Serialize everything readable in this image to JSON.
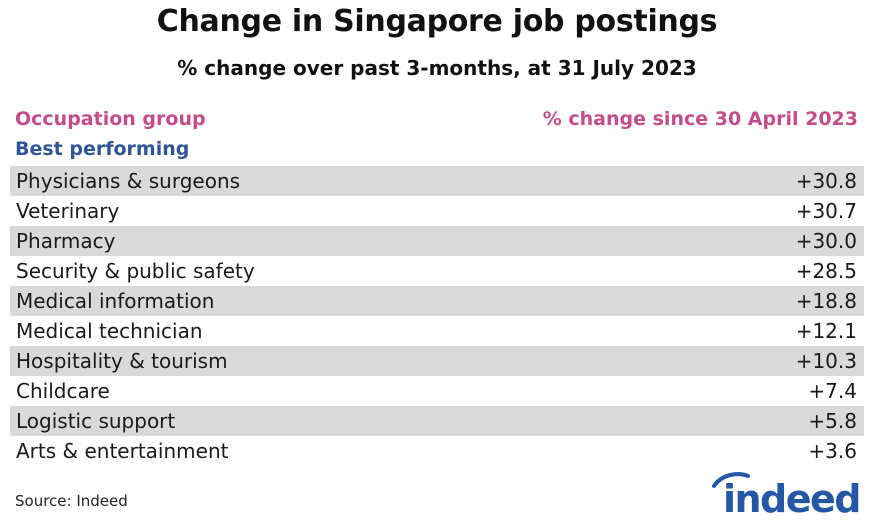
{
  "chart_data": {
    "type": "table",
    "title": "Change in Singapore job postings",
    "subtitle": "% change over past 3-months, at 31 July 2023",
    "columns": [
      "Occupation group",
      "% change since 30 April 2023"
    ],
    "section": "Best performing",
    "categories": [
      "Physicians & surgeons",
      "Veterinary",
      "Pharmacy",
      "Security & public safety",
      "Medical information",
      "Medical technician",
      "Hospitality & tourism",
      "Childcare",
      "Logistic support",
      "Arts & entertainment"
    ],
    "values": [
      30.8,
      30.7,
      30.0,
      28.5,
      18.8,
      12.1,
      10.3,
      7.4,
      5.8,
      3.6
    ],
    "value_labels": [
      "+30.8",
      "+30.7",
      "+30.0",
      "+28.5",
      "+18.8",
      "+12.1",
      "+10.3",
      "+7.4",
      "+5.8",
      "+3.6"
    ]
  },
  "source": "Source: Indeed",
  "logo": {
    "text": "indeed",
    "color": "#2557a7"
  },
  "colors": {
    "header": "#c34c8a",
    "section": "#2f5597",
    "row_shade": "#d9d9d9"
  }
}
